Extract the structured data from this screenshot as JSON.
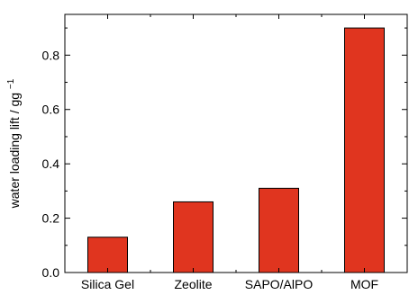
{
  "chart_data": {
    "type": "bar",
    "categories": [
      "Silica Gel",
      "Zeolite",
      "SAPO/AlPO",
      "MOF"
    ],
    "values": [
      0.13,
      0.26,
      0.31,
      0.9
    ],
    "ylabel": "water loading lift / gg",
    "ylabel_exponent": "−1",
    "xlabel": "",
    "ylim": [
      0.0,
      0.95
    ],
    "yticks": [
      0.0,
      0.2,
      0.4,
      0.6,
      0.8
    ],
    "ytick_labels": [
      "0.0",
      "0.2",
      "0.4",
      "0.6",
      "0.8"
    ],
    "grid": false,
    "legend": "none",
    "bar_color": "#e0351f",
    "bar_edge_color": "#000000"
  }
}
